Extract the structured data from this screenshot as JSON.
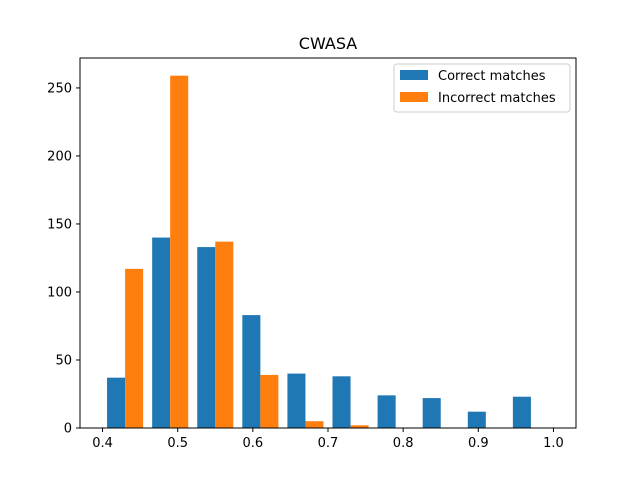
{
  "chart_data": {
    "type": "bar",
    "title": "CWASA",
    "xlabel": "",
    "ylabel": "",
    "bin_edges": [
      0.4,
      0.46,
      0.52,
      0.58,
      0.64,
      0.7,
      0.76,
      0.82,
      0.88,
      0.94,
      1.0
    ],
    "series": [
      {
        "name": "Correct matches",
        "color": "#1f77b4",
        "values": [
          37,
          140,
          133,
          83,
          40,
          38,
          24,
          22,
          12,
          23
        ]
      },
      {
        "name": "Incorrect matches",
        "color": "#ff7f0e",
        "values": [
          117,
          259,
          137,
          39,
          5,
          2,
          0,
          0,
          0,
          0
        ]
      }
    ],
    "xlim": [
      0.37,
      1.03
    ],
    "ylim": [
      0,
      272
    ],
    "xticks": [
      0.4,
      0.5,
      0.6,
      0.7,
      0.8,
      0.9,
      1.0
    ],
    "xtick_labels": [
      "0.4",
      "0.5",
      "0.6",
      "0.7",
      "0.8",
      "0.9",
      "1.0"
    ],
    "yticks": [
      0,
      50,
      100,
      150,
      200,
      250
    ],
    "ytick_labels": [
      "0",
      "50",
      "100",
      "150",
      "200",
      "250"
    ],
    "grid": false,
    "legend_position": "upper-right"
  }
}
